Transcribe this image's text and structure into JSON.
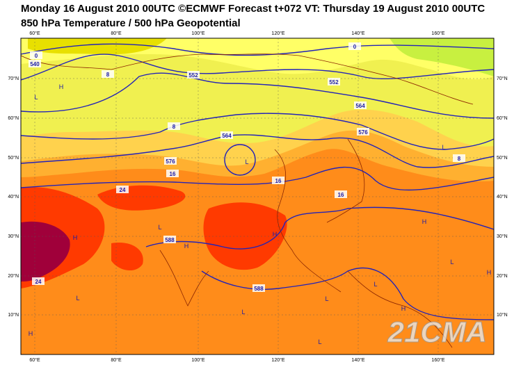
{
  "header": {
    "title": "Monday 16 August 2010 00UTC ©ECMWF Forecast t+072 VT: Thursday 19 August 2010 00UTC",
    "subtitle": "850 hPa Temperature / 500 hPa Geopotential"
  },
  "map": {
    "lon_labels": [
      "60°E",
      "80°E",
      "100°E",
      "120°E",
      "140°E",
      "160°E"
    ],
    "lat_labels": [
      "70°N",
      "60°N",
      "50°N",
      "40°N",
      "30°N",
      "20°N",
      "10°N"
    ],
    "contour_labels": [
      "540",
      "552",
      "564",
      "576",
      "588",
      "588",
      "552",
      "564",
      "576",
      "0",
      "8",
      "8",
      "16",
      "16",
      "16",
      "24",
      "24",
      "0",
      "8"
    ],
    "pressure_centers": [
      "H",
      "L",
      "L",
      "L",
      "H",
      "L",
      "H",
      "H",
      "L",
      "L",
      "L",
      "H",
      "L",
      "H",
      "L",
      "L",
      "H",
      "H"
    ],
    "watermark": "21CMA"
  }
}
